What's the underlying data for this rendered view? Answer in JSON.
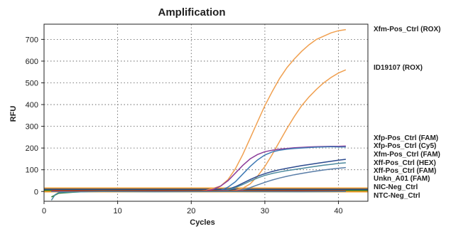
{
  "chart_data": {
    "type": "line",
    "title": "Amplification",
    "xlabel": "Cycles",
    "ylabel": "RFU",
    "xlim": [
      0,
      44
    ],
    "ylim": [
      -45,
      770
    ],
    "x_ticks": [
      0,
      10,
      20,
      30,
      40
    ],
    "y_ticks": [
      0,
      100,
      200,
      300,
      400,
      500,
      600,
      700
    ],
    "grid": true,
    "threshold": 15,
    "legend_position": "right",
    "colors": {
      "orange": "#f0a050",
      "purple": "#8c3d9a",
      "blue": "#3f7ab5",
      "darkblue": "#2b4a8f",
      "teal": "#4c8a9e",
      "green": "#2e7d32",
      "red": "#c62828",
      "threshold": "#f39a22"
    },
    "series": [
      {
        "name": "Xfm-Pos_Ctrl (ROX)",
        "color": "#f0a050",
        "x": [
          1,
          20,
          22,
          24,
          25,
          26,
          27,
          28,
          29,
          30,
          31,
          32,
          33,
          34,
          35,
          36,
          37,
          38,
          39,
          40,
          41
        ],
        "y": [
          0,
          0,
          5,
          25,
          55,
          105,
          170,
          245,
          320,
          395,
          460,
          520,
          570,
          610,
          645,
          675,
          700,
          715,
          730,
          740,
          745
        ]
      },
      {
        "name": "ID19107 (ROX)",
        "color": "#f0a050",
        "x": [
          1,
          24,
          26,
          27,
          28,
          29,
          30,
          31,
          32,
          33,
          34,
          35,
          36,
          37,
          38,
          39,
          40,
          41
        ],
        "y": [
          0,
          0,
          5,
          15,
          35,
          70,
          115,
          170,
          230,
          290,
          345,
          395,
          435,
          470,
          500,
          525,
          545,
          560
        ]
      },
      {
        "name": "Xfp-Pos_Ctrl (FAM)",
        "color": "#8c3d9a",
        "x": [
          1,
          20,
          22,
          23,
          24,
          25,
          26,
          27,
          28,
          29,
          30,
          31,
          32,
          33,
          34,
          35,
          36,
          37,
          38,
          39,
          40,
          41
        ],
        "y": [
          0,
          0,
          3,
          10,
          25,
          50,
          85,
          120,
          150,
          170,
          183,
          190,
          195,
          198,
          201,
          203,
          205,
          206,
          207,
          208,
          208,
          209
        ]
      },
      {
        "name": "Xfp-Pos_Ctrl (Cy5)",
        "color": "#3f7ab5",
        "x": [
          1,
          22,
          24,
          25,
          26,
          27,
          28,
          29,
          30,
          31,
          32,
          33,
          34,
          35,
          36,
          37,
          38,
          39,
          40,
          41
        ],
        "y": [
          0,
          0,
          5,
          20,
          45,
          80,
          115,
          145,
          168,
          182,
          190,
          195,
          198,
          200,
          202,
          204,
          205,
          206,
          205,
          205
        ]
      },
      {
        "name": "Xfm-Pos_Ctrl (FAM)",
        "color": "#2b4a8f",
        "x": [
          1,
          22,
          24,
          25,
          26,
          27,
          28,
          29,
          30,
          31,
          32,
          33,
          34,
          35,
          36,
          37,
          38,
          39,
          40,
          41
        ],
        "y": [
          0,
          0,
          3,
          10,
          22,
          38,
          55,
          70,
          82,
          92,
          100,
          107,
          113,
          119,
          124,
          129,
          134,
          139,
          144,
          148
        ]
      },
      {
        "name": "Xff-Pos_Ctrl (HEX)",
        "color": "#4c8a9e",
        "x": [
          1,
          22,
          24,
          25,
          26,
          27,
          28,
          29,
          30,
          31,
          32,
          33,
          34,
          35,
          36,
          37,
          38,
          39,
          40,
          41
        ],
        "y": [
          0,
          0,
          3,
          8,
          18,
          32,
          48,
          62,
          74,
          83,
          90,
          96,
          101,
          106,
          111,
          116,
          121,
          125,
          129,
          132
        ]
      },
      {
        "name": "Xff-Pos_Ctrl (FAM)",
        "color": "#5a7ea8",
        "x": [
          1,
          24,
          26,
          27,
          28,
          29,
          30,
          31,
          32,
          33,
          34,
          35,
          36,
          37,
          38,
          39,
          40,
          41
        ],
        "y": [
          0,
          0,
          2,
          8,
          18,
          30,
          42,
          53,
          62,
          70,
          77,
          83,
          89,
          94,
          99,
          103,
          107,
          110
        ]
      },
      {
        "name": "Unkn_A01 (FAM)",
        "color": "#2e7d32",
        "x": [
          1,
          2,
          4,
          6,
          10,
          15,
          20,
          25,
          30,
          35,
          41
        ],
        "y": [
          -25,
          -8,
          -3,
          0,
          1,
          0,
          1,
          0,
          1,
          0,
          1
        ]
      },
      {
        "name": "NIC-Neg_Ctrl",
        "color": "#c62828",
        "x": [
          1,
          3,
          5,
          10,
          20,
          30,
          41
        ],
        "y": [
          4,
          3,
          3,
          3,
          3,
          3,
          3
        ]
      },
      {
        "name": "NTC-Neg_Ctrl",
        "color": "#4c8a9e",
        "x": [
          1,
          1.5,
          2,
          4,
          8,
          15,
          25,
          35,
          41
        ],
        "y": [
          -40,
          -15,
          -5,
          -2,
          0,
          -1,
          0,
          -1,
          0
        ]
      }
    ],
    "legend": [
      "Xfm-Pos_Ctrl (ROX)",
      "ID19107 (ROX)",
      "Xfp-Pos_Ctrl (FAM)",
      "Xfp-Pos_Ctrl (Cy5)",
      "Xfm-Pos_Ctrl (FAM)",
      "Xff-Pos_Ctrl (HEX)",
      "Xff-Pos_Ctrl (FAM)",
      "Unkn_A01 (FAM)",
      "NIC-Neg_Ctrl",
      "NTC-Neg_Ctrl"
    ]
  }
}
